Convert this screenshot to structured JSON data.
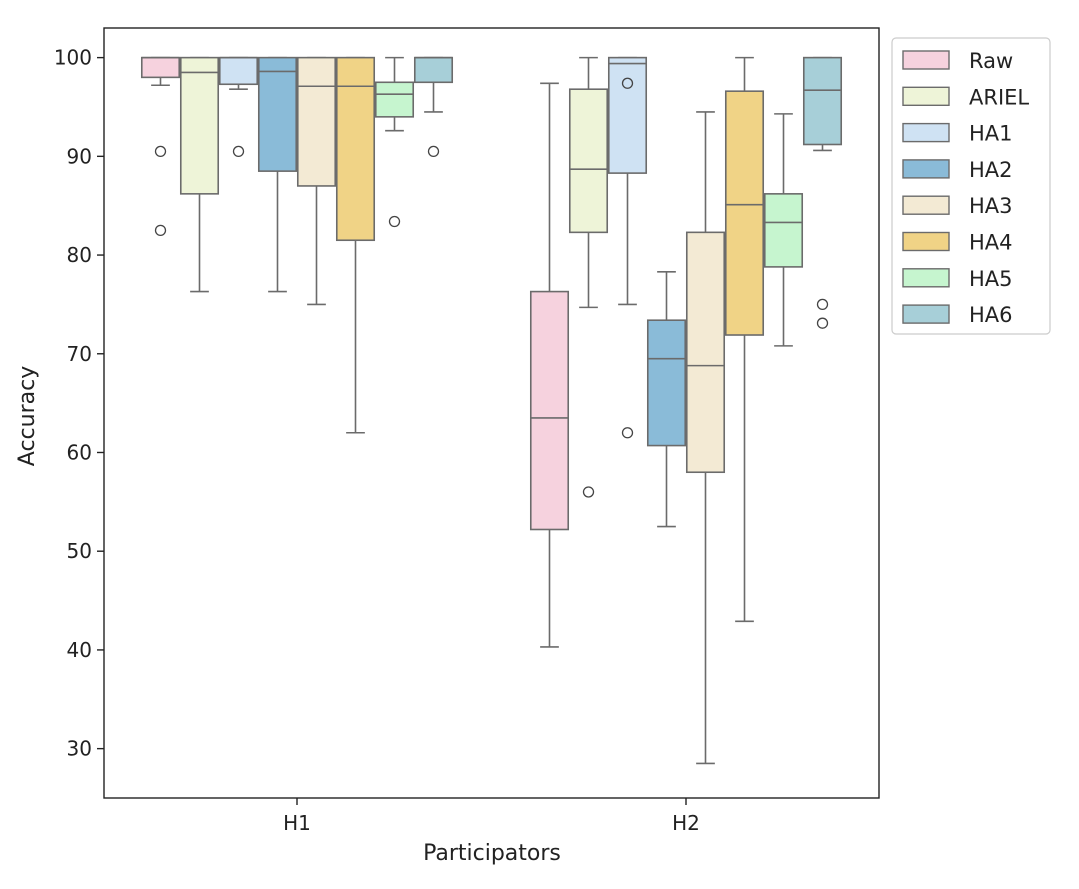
{
  "chart_data": {
    "type": "boxplot",
    "title": "",
    "xlabel": "Participators",
    "ylabel": "Accuracy",
    "ylim": [
      25,
      103
    ],
    "yticks": [
      30,
      40,
      50,
      60,
      70,
      80,
      90,
      100
    ],
    "categories": [
      "H1",
      "H2"
    ],
    "legend_position": "outside-top-right",
    "series": [
      {
        "name": "Raw",
        "color": "#f6d2de",
        "boxes": [
          {
            "category": "H1",
            "whislo": 97.2,
            "q1": 98,
            "med": 100,
            "q3": 100,
            "whishi": 100,
            "fliers": [
              90.5,
              82.5
            ]
          },
          {
            "category": "H2",
            "whislo": 40.3,
            "q1": 52.2,
            "med": 63.5,
            "q3": 76.3,
            "whishi": 97.4,
            "fliers": []
          }
        ]
      },
      {
        "name": "ARIEL",
        "color": "#eef4d8",
        "boxes": [
          {
            "category": "H1",
            "whislo": 76.3,
            "q1": 86.2,
            "med": 98.5,
            "q3": 100,
            "whishi": 100,
            "fliers": []
          },
          {
            "category": "H2",
            "whislo": 74.7,
            "q1": 82.3,
            "med": 88.7,
            "q3": 96.8,
            "whishi": 100,
            "fliers": [
              56
            ]
          }
        ]
      },
      {
        "name": "HA1",
        "color": "#cfe2f3",
        "boxes": [
          {
            "category": "H1",
            "whislo": 96.8,
            "q1": 97.3,
            "med": 100,
            "q3": 100,
            "whishi": 100,
            "fliers": [
              90.5
            ]
          },
          {
            "category": "H2",
            "whislo": 75,
            "q1": 88.3,
            "med": 99.4,
            "q3": 100,
            "whishi": 100,
            "fliers": [
              97.4,
              62
            ]
          }
        ]
      },
      {
        "name": "HA2",
        "color": "#8abbd8",
        "boxes": [
          {
            "category": "H1",
            "whislo": 76.3,
            "q1": 88.5,
            "med": 98.6,
            "q3": 100,
            "whishi": 100,
            "fliers": []
          },
          {
            "category": "H2",
            "whislo": 52.5,
            "q1": 60.7,
            "med": 69.5,
            "q3": 73.4,
            "whishi": 78.3,
            "fliers": []
          }
        ]
      },
      {
        "name": "HA3",
        "color": "#f3ead4",
        "boxes": [
          {
            "category": "H1",
            "whislo": 75,
            "q1": 87,
            "med": 97.1,
            "q3": 100,
            "whishi": 100,
            "fliers": []
          },
          {
            "category": "H2",
            "whislo": 28.5,
            "q1": 58,
            "med": 68.8,
            "q3": 82.3,
            "whishi": 94.5,
            "fliers": []
          }
        ]
      },
      {
        "name": "HA4",
        "color": "#f0d386",
        "boxes": [
          {
            "category": "H1",
            "whislo": 62,
            "q1": 81.5,
            "med": 97.1,
            "q3": 100,
            "whishi": 100,
            "fliers": []
          },
          {
            "category": "H2",
            "whislo": 42.9,
            "q1": 71.9,
            "med": 85.1,
            "q3": 96.6,
            "whishi": 100,
            "fliers": []
          }
        ]
      },
      {
        "name": "HA5",
        "color": "#c6f5cf",
        "boxes": [
          {
            "category": "H1",
            "whislo": 92.6,
            "q1": 94,
            "med": 96.3,
            "q3": 97.5,
            "whishi": 100,
            "fliers": [
              83.4
            ]
          },
          {
            "category": "H2",
            "whislo": 70.8,
            "q1": 78.8,
            "med": 83.3,
            "q3": 86.2,
            "whishi": 94.3,
            "fliers": []
          }
        ]
      },
      {
        "name": "HA6",
        "color": "#a7cfd8",
        "boxes": [
          {
            "category": "H1",
            "whislo": 94.5,
            "q1": 97.5,
            "med": 100,
            "q3": 100,
            "whishi": 100,
            "fliers": [
              90.5
            ]
          },
          {
            "category": "H2",
            "whislo": 90.6,
            "q1": 91.2,
            "med": 96.7,
            "q3": 100,
            "whishi": 100,
            "fliers": [
              75,
              73.1
            ]
          }
        ]
      }
    ]
  }
}
